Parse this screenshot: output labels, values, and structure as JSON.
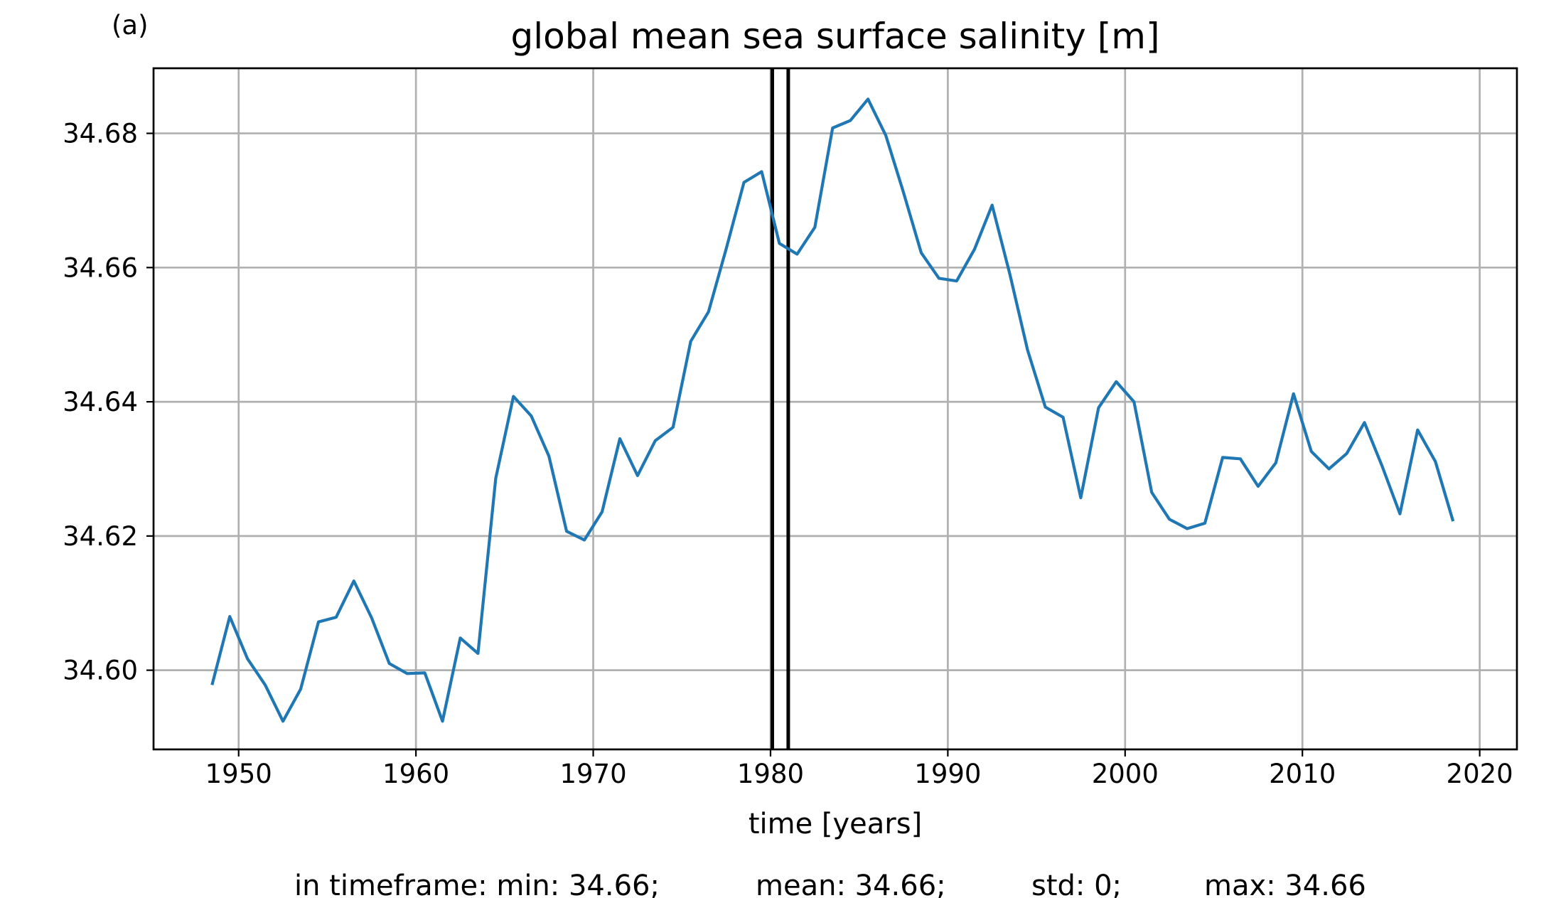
{
  "panel_label": "(a)",
  "stats_line": {
    "min": "in timeframe: min: 34.66;",
    "mean": "mean: 34.66;",
    "std": "std: 0;",
    "max": "max: 34.66"
  },
  "colors": {
    "series": "#1f77b4",
    "grid": "#b0b0b0",
    "markers": "#000000"
  },
  "chart_data": {
    "type": "line",
    "title": "global mean sea surface salinity [m]",
    "xlabel": "time [years]",
    "ylabel": "",
    "xlim": [
      1945.2,
      2022.1
    ],
    "ylim": [
      34.5882,
      34.6897
    ],
    "xticks": [
      1950,
      1960,
      1970,
      1980,
      1990,
      2000,
      2010,
      2020
    ],
    "xtick_labels": [
      "1950",
      "1960",
      "1970",
      "1980",
      "1990",
      "2000",
      "2010",
      "2020"
    ],
    "yticks": [
      34.6,
      34.62,
      34.64,
      34.66,
      34.68
    ],
    "ytick_labels": [
      "34.60",
      "34.62",
      "34.64",
      "34.66",
      "34.68"
    ],
    "grid": true,
    "vertical_lines": [
      1980.1,
      1981.0
    ],
    "series": [
      {
        "color": "#1f77b4",
        "x": [
          1948.5,
          1949.5,
          1950.5,
          1951.5,
          1952.5,
          1953.5,
          1954.5,
          1955.5,
          1956.5,
          1957.5,
          1958.5,
          1959.5,
          1960.5,
          1961.5,
          1962.5,
          1963.5,
          1964.5,
          1965.5,
          1966.5,
          1967.5,
          1968.5,
          1969.5,
          1970.5,
          1971.5,
          1972.5,
          1973.5,
          1974.5,
          1975.5,
          1976.5,
          1977.5,
          1978.5,
          1979.5,
          1980.5,
          1981.5,
          1982.5,
          1983.5,
          1984.5,
          1985.5,
          1986.5,
          1987.5,
          1988.5,
          1989.5,
          1990.5,
          1991.5,
          1992.5,
          1993.5,
          1994.5,
          1995.5,
          1996.5,
          1997.5,
          1998.5,
          1999.5,
          2000.5,
          2001.5,
          2002.5,
          2003.5,
          2004.5,
          2005.5,
          2006.5,
          2007.5,
          2008.5,
          2009.5,
          2010.5,
          2011.5,
          2012.5,
          2013.5,
          2014.5,
          2015.5,
          2016.5,
          2017.5,
          2018.5
        ],
        "y": [
          34.5978,
          34.608,
          34.6017,
          34.5978,
          34.5924,
          34.5972,
          34.6072,
          34.6079,
          34.6133,
          34.6078,
          34.601,
          34.5995,
          34.5996,
          34.5924,
          34.6048,
          34.6025,
          34.6286,
          34.6408,
          34.6379,
          34.6319,
          34.6207,
          34.6194,
          34.6236,
          34.6345,
          34.629,
          34.6342,
          34.6362,
          34.649,
          34.6534,
          34.6628,
          34.6727,
          34.6743,
          34.6636,
          34.662,
          34.666,
          34.6808,
          34.6819,
          34.6851,
          34.6797,
          34.6712,
          34.6622,
          34.6584,
          34.658,
          34.6627,
          34.6693,
          34.659,
          34.6477,
          34.6392,
          34.6377,
          34.6257,
          34.6391,
          34.643,
          34.64,
          34.6265,
          34.6225,
          34.6211,
          34.6219,
          34.6317,
          34.6315,
          34.6274,
          34.6309,
          34.6412,
          34.6326,
          34.63,
          34.6323,
          34.6369,
          34.6304,
          34.6233,
          34.6358,
          34.6311,
          34.6222
        ]
      }
    ]
  }
}
